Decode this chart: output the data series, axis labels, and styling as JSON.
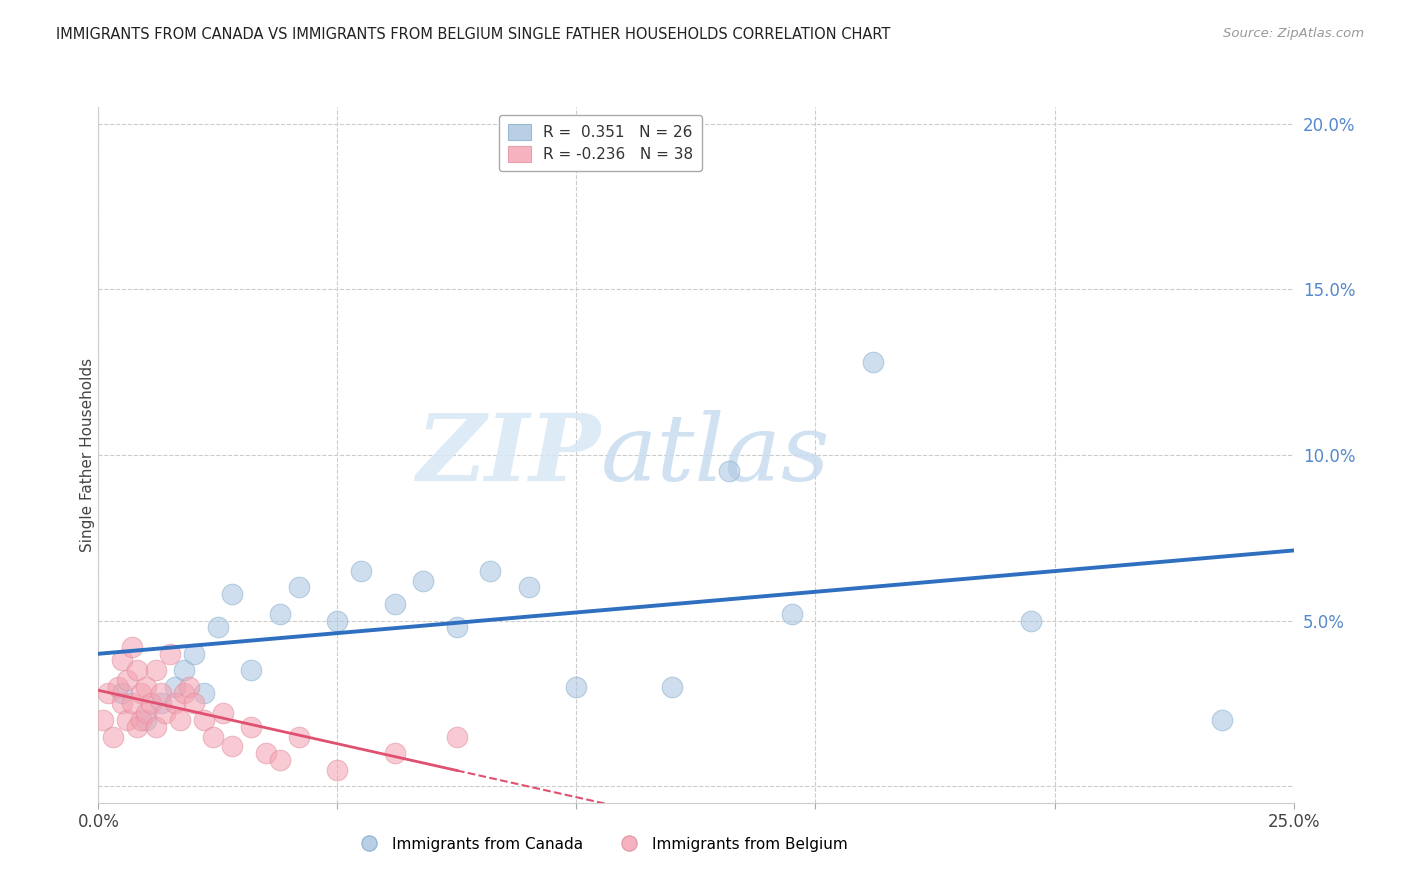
{
  "title": "IMMIGRANTS FROM CANADA VS IMMIGRANTS FROM BELGIUM SINGLE FATHER HOUSEHOLDS CORRELATION CHART",
  "source": "Source: ZipAtlas.com",
  "ylabel": "Single Father Households",
  "xlim": [
    0,
    0.25
  ],
  "ylim": [
    -0.005,
    0.205
  ],
  "xticks": [
    0.0,
    0.05,
    0.1,
    0.15,
    0.2,
    0.25
  ],
  "yticks": [
    0.0,
    0.05,
    0.1,
    0.15,
    0.2
  ],
  "legend_labels": [
    "Immigrants from Canada",
    "Immigrants from Belgium"
  ],
  "canada_R": 0.351,
  "canada_N": 26,
  "belgium_R": -0.236,
  "belgium_N": 38,
  "canada_color": "#A8C4E0",
  "belgium_color": "#F4A0B0",
  "canada_line_color": "#2E6FBF",
  "belgium_line_color": "#E05070",
  "background_color": "#ffffff",
  "watermark_zip": "ZIP",
  "watermark_atlas": "atlas",
  "canada_x": [
    0.005,
    0.01,
    0.013,
    0.016,
    0.018,
    0.02,
    0.022,
    0.025,
    0.028,
    0.032,
    0.038,
    0.042,
    0.05,
    0.055,
    0.062,
    0.068,
    0.075,
    0.082,
    0.09,
    0.1,
    0.12,
    0.132,
    0.145,
    0.162,
    0.195,
    0.235
  ],
  "canada_y": [
    0.028,
    0.02,
    0.025,
    0.03,
    0.035,
    0.04,
    0.028,
    0.048,
    0.058,
    0.035,
    0.052,
    0.06,
    0.05,
    0.065,
    0.055,
    0.062,
    0.048,
    0.065,
    0.06,
    0.03,
    0.03,
    0.095,
    0.052,
    0.128,
    0.05,
    0.02
  ],
  "belgium_x": [
    0.001,
    0.002,
    0.003,
    0.004,
    0.005,
    0.005,
    0.006,
    0.006,
    0.007,
    0.007,
    0.008,
    0.008,
    0.009,
    0.009,
    0.01,
    0.01,
    0.011,
    0.012,
    0.012,
    0.013,
    0.014,
    0.015,
    0.016,
    0.017,
    0.018,
    0.019,
    0.02,
    0.022,
    0.024,
    0.026,
    0.028,
    0.032,
    0.035,
    0.038,
    0.042,
    0.05,
    0.062,
    0.075
  ],
  "belgium_y": [
    0.02,
    0.028,
    0.015,
    0.03,
    0.025,
    0.038,
    0.02,
    0.032,
    0.042,
    0.025,
    0.035,
    0.018,
    0.028,
    0.02,
    0.03,
    0.022,
    0.025,
    0.035,
    0.018,
    0.028,
    0.022,
    0.04,
    0.025,
    0.02,
    0.028,
    0.03,
    0.025,
    0.02,
    0.015,
    0.022,
    0.012,
    0.018,
    0.01,
    0.008,
    0.015,
    0.005,
    0.01,
    0.015
  ]
}
